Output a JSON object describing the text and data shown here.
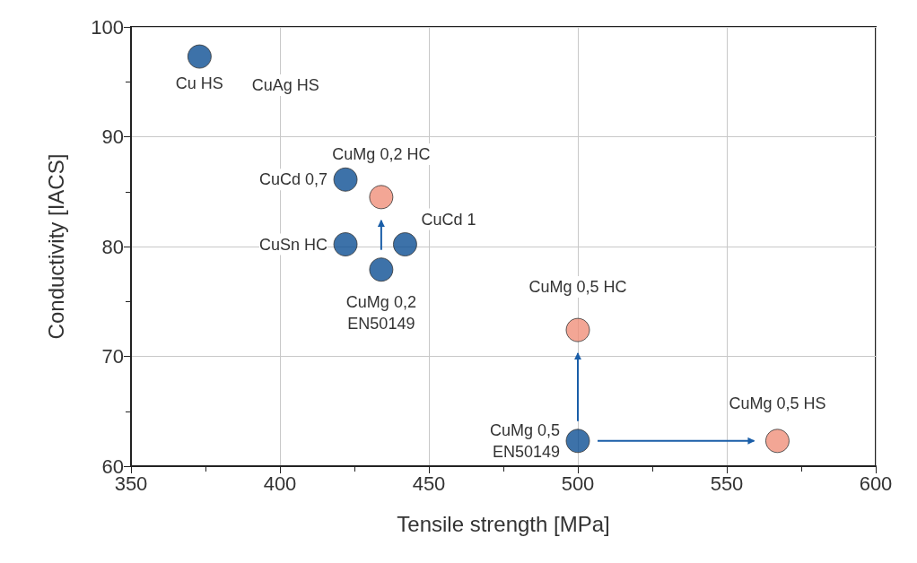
{
  "chart_data": {
    "type": "scatter",
    "xlabel": "Tensile strength [MPa]",
    "ylabel": "Conductivity [IACS]",
    "series": [
      {
        "color": "#0d4f94",
        "x": [
          373,
          422,
          422,
          442,
          434,
          500
        ],
        "values": [
          97.3,
          86.1,
          80.2,
          80.2,
          77.9,
          62.3
        ]
      },
      {
        "color": "#f0907a",
        "x": [
          434,
          500,
          567
        ],
        "values": [
          84.5,
          72.4,
          62.3
        ]
      }
    ],
    "annotations": [
      {
        "text": "Cu HS",
        "x": 373,
        "y": 97.3
      },
      "CuAg HS",
      {
        "text": "CuCd 0,7",
        "x": 422,
        "y": 86.1
      },
      {
        "text": "CuSn HC",
        "x": 422,
        "y": 80.2
      },
      {
        "text": "CuCd 1",
        "x": 442,
        "y": 80.2
      },
      {
        "text": "CuMg 0,2\nEN50149",
        "x": 434,
        "y": 77.9
      },
      {
        "text": "CuMg 0,2 HC",
        "x": 434,
        "y": 84.5
      },
      {
        "text": "CuMg 0,5 HC",
        "x": 500,
        "y": 72.4
      },
      {
        "text": "CuMg 0,5\nEN50149",
        "x": 500,
        "y": 62.3
      },
      {
        "text": "CuMg 0,5 HS",
        "x": 567,
        "y": 62.3
      }
    ],
    "xlim": [
      350,
      600
    ],
    "xticks": [
      350,
      400,
      450,
      500,
      550,
      600
    ],
    "ylim": [
      60,
      100
    ],
    "yticks": [
      60,
      70,
      80,
      90,
      100
    ],
    "grid": true,
    "marker": "circle"
  }
}
